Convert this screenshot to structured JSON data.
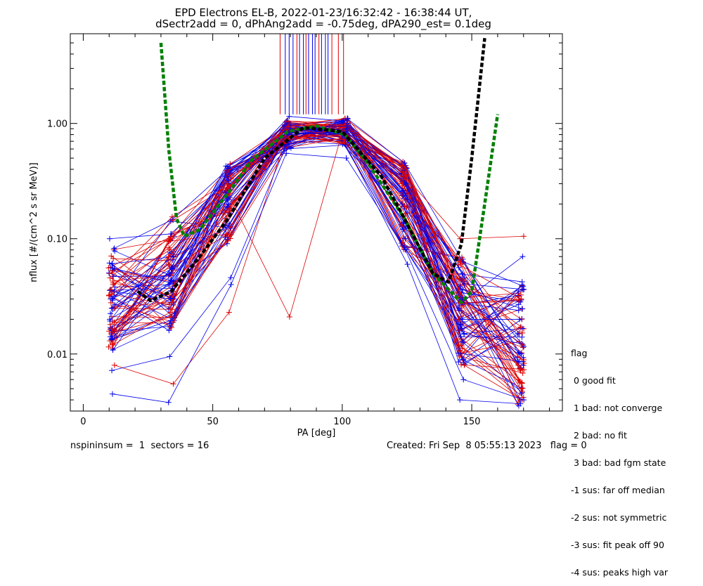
{
  "title_line1": "EPD Electrons EL-B, 2022-01-23/16:32:42 - 16:38:44 UT,",
  "title_line2": "dSectr2add = 0, dPhAng2add = -0.75deg, dPA290_est=   0.1deg",
  "footer": {
    "left": "nspininsum =  1  sectors = 16",
    "right": "Created: Fri Sep  8 05:55:13 2023   flag = 0"
  },
  "legend": {
    "title": "flag",
    "items": [
      " 0 good fit",
      " 1 bad: not converge",
      " 2 bad: no fit",
      " 3 bad: bad fgm state",
      "-1 sus: far off median",
      "-2 sus: not symmetric",
      "-3 sus: fit peak off 90",
      "-4 sus: peaks high var"
    ]
  },
  "chart_data": {
    "type": "line",
    "title": "EPD Electrons EL-B, 2022-01-23/16:32:42 - 16:38:44 UT,",
    "subtitle": "dSectr2add = 0, dPhAng2add = -0.75deg, dPA290_est=   0.1deg",
    "xlabel": "PA [deg]",
    "ylabel": "nflux [#/(cm^2 s sr MeV)]",
    "xlim": [
      -5,
      185
    ],
    "ylim": [
      0.0032,
      6.0
    ],
    "yscale": "log",
    "x_ticks": [
      "0",
      "50",
      "100",
      "150"
    ],
    "y_ticks": [
      "0.01",
      "0.10",
      "1.00"
    ],
    "sector_pa": [
      11,
      34,
      56,
      79,
      101,
      124,
      146,
      169
    ],
    "colors": {
      "red": "#dd0000",
      "blue": "#0000ee",
      "fit_green": "#00ee00",
      "fit_black": "#000000"
    },
    "sample_red_spectra": [
      [
        0.025,
        0.06,
        0.28,
        0.9,
        0.95,
        0.3,
        0.028,
        0.012
      ],
      [
        0.012,
        0.023,
        0.15,
        0.85,
        0.9,
        0.2,
        0.012,
        0.005
      ],
      [
        0.05,
        0.1,
        0.33,
        0.95,
        0.98,
        0.38,
        0.06,
        0.03
      ],
      [
        0.018,
        0.04,
        0.2,
        0.75,
        0.8,
        0.25,
        0.02,
        0.008
      ],
      [
        0.032,
        0.07,
        0.25,
        0.021,
        0.85,
        0.33,
        0.045,
        0.02
      ],
      [
        0.008,
        0.0055,
        0.023,
        0.7,
        0.92,
        0.15,
        0.008,
        0.004
      ],
      [
        0.04,
        0.08,
        0.3,
        0.88,
        0.96,
        0.35,
        0.1,
        0.105
      ]
    ],
    "sample_blue_spectra": [
      [
        0.02,
        0.04,
        0.2,
        0.8,
        0.85,
        0.2,
        0.025,
        0.01
      ],
      [
        0.03,
        0.055,
        0.25,
        0.9,
        0.95,
        0.26,
        0.03,
        0.015
      ],
      [
        0.0072,
        0.0095,
        0.046,
        0.6,
        0.65,
        0.06,
        0.004,
        0.0037
      ],
      [
        0.0045,
        0.0038,
        0.04,
        0.55,
        0.5,
        0.08,
        0.006,
        0.004
      ],
      [
        0.1,
        0.11,
        0.32,
        1.15,
        1.05,
        0.3,
        0.028,
        0.07
      ],
      [
        0.025,
        0.05,
        0.22,
        0.85,
        0.9,
        0.22,
        0.02,
        0.02
      ]
    ],
    "fit_curves": [
      {
        "color": "green",
        "x": [
          30,
          33,
          36,
          39,
          45,
          56,
          65,
          79,
          90,
          101,
          110,
          124,
          135,
          146,
          150,
          155,
          160
        ],
        "y": [
          5.0,
          0.6,
          0.15,
          0.105,
          0.12,
          0.25,
          0.48,
          0.85,
          0.95,
          0.8,
          0.45,
          0.15,
          0.05,
          0.028,
          0.035,
          0.2,
          1.2
        ]
      },
      {
        "color": "black",
        "x": [
          21,
          26,
          34,
          45,
          56,
          70,
          85,
          100,
          115,
          124,
          135,
          141,
          146,
          150,
          155
        ],
        "y": [
          0.035,
          0.029,
          0.035,
          0.07,
          0.15,
          0.5,
          0.92,
          0.85,
          0.35,
          0.15,
          0.05,
          0.042,
          0.09,
          0.5,
          5.5
        ]
      }
    ]
  }
}
